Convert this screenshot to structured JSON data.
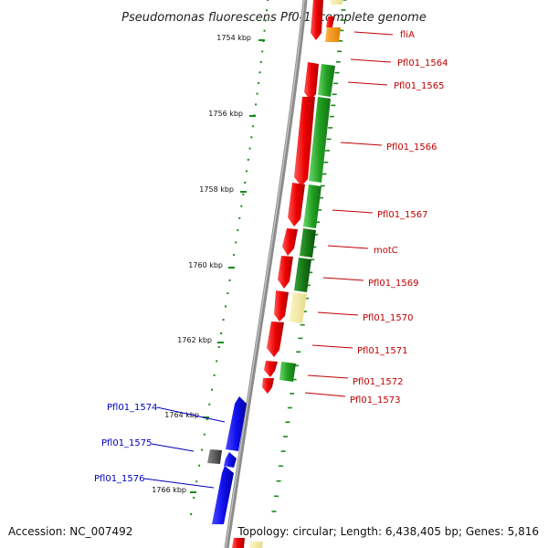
{
  "title": "Pseudomonas fluorescens Pf0-1, complete genome",
  "footer": {
    "accession": "Accession: NC_007492",
    "summary": "Topology: circular; Length: 6,438,405 bp; Genes: 5,816"
  },
  "colors": {
    "backbone": "#8c8c8c",
    "forward_cds": "#ee0000",
    "reverse_cds": "#1010ee",
    "green_feature": "#22a022",
    "orange_feature": "#f39000",
    "pale_feature": "#f2eaa0",
    "gray_feature": "#555555",
    "tick": "#1a8a1a",
    "red_label": "#c00000",
    "blue_label": "#0000bb"
  },
  "ticks": [
    {
      "label": "1754 kbp"
    },
    {
      "label": "1756 kbp"
    },
    {
      "label": "1758 kbp"
    },
    {
      "label": "1760 kbp"
    },
    {
      "label": "1762 kbp"
    },
    {
      "label": "1764 kbp"
    },
    {
      "label": "1766 kbp"
    }
  ],
  "gene_labels": [
    {
      "label": "fliA",
      "strand": "forward"
    },
    {
      "label": "Pfl01_1564",
      "strand": "forward"
    },
    {
      "label": "Pfl01_1565",
      "strand": "forward"
    },
    {
      "label": "Pfl01_1566",
      "strand": "forward"
    },
    {
      "label": "Pfl01_1567",
      "strand": "forward"
    },
    {
      "label": "motC",
      "strand": "forward"
    },
    {
      "label": "Pfl01_1569",
      "strand": "forward"
    },
    {
      "label": "Pfl01_1570",
      "strand": "forward"
    },
    {
      "label": "Pfl01_1571",
      "strand": "forward"
    },
    {
      "label": "Pfl01_1572",
      "strand": "forward"
    },
    {
      "label": "Pfl01_1573",
      "strand": "forward"
    },
    {
      "label": "Pfl01_1574",
      "strand": "reverse"
    },
    {
      "label": "Pfl01_1575",
      "strand": "reverse"
    },
    {
      "label": "Pfl01_1576",
      "strand": "reverse"
    }
  ]
}
